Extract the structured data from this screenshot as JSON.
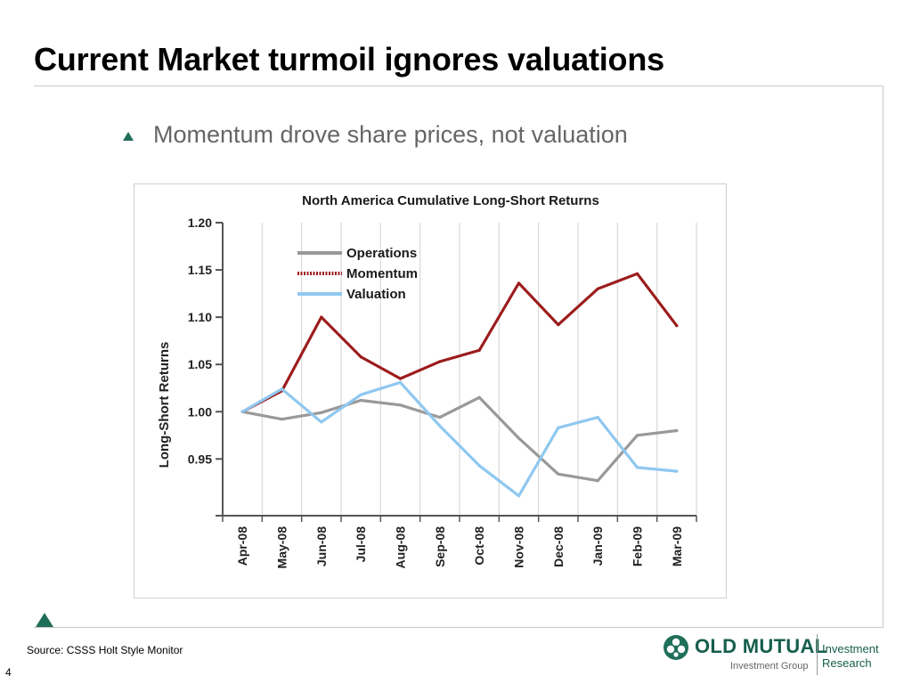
{
  "slide": {
    "title": "Current Market turmoil ignores valuations",
    "bullet": "Momentum drove share prices, not valuation",
    "source": "Source: CSSS Holt Style Monitor",
    "page_number": "4"
  },
  "logo": {
    "name": "OLD MUTUAL",
    "sub": "Investment Group",
    "right_line1": "Investment",
    "right_line2": "Research"
  },
  "colors": {
    "operations": "#999999",
    "momentum": "#9c1c1c",
    "valuation": "#8fc8f0",
    "accent": "#1f6e5a"
  },
  "chart_data": {
    "type": "line",
    "title": "North America Cumulative Long-Short Returns",
    "xlabel": "",
    "ylabel": "Long-Short Returns",
    "categories": [
      "Apr-08",
      "May-08",
      "Jun-08",
      "Jul-08",
      "Aug-08",
      "Sep-08",
      "Oct-08",
      "Nov-08",
      "Dec-08",
      "Jan-09",
      "Feb-09",
      "Mar-09"
    ],
    "ylim": [
      0.89,
      1.2
    ],
    "yticks": [
      "1.20",
      "1.15",
      "1.10",
      "1.05",
      "1.00",
      "0.95"
    ],
    "grid": "vertical",
    "legend_position": "top-left",
    "series": [
      {
        "name": "Operations",
        "values": [
          1.0,
          0.992,
          0.999,
          1.012,
          1.007,
          0.994,
          1.015,
          0.972,
          0.934,
          0.927,
          0.975,
          0.98
        ]
      },
      {
        "name": "Momentum",
        "values": [
          1.0,
          1.022,
          1.1,
          1.058,
          1.035,
          1.053,
          1.065,
          1.136,
          1.092,
          1.13,
          1.146,
          1.091
        ]
      },
      {
        "name": "Valuation",
        "values": [
          1.0,
          1.024,
          0.989,
          1.018,
          1.031,
          0.985,
          0.943,
          0.911,
          0.983,
          0.994,
          0.941,
          0.937
        ]
      }
    ]
  }
}
